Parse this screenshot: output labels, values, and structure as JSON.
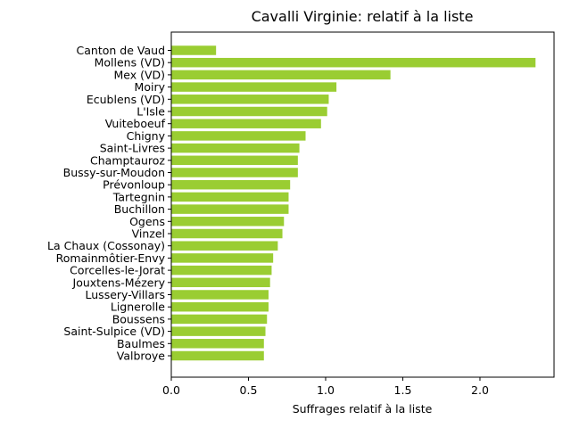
{
  "chart_data": {
    "type": "bar",
    "orientation": "horizontal",
    "title": "Cavalli Virginie: relatif à la liste",
    "xlabel": "Suffrages relatif à la liste",
    "ylabel": "",
    "xlim": [
      0,
      2.48
    ],
    "xticks": [
      0.0,
      0.5,
      1.0,
      1.5,
      2.0
    ],
    "xtick_labels": [
      "0.0",
      "0.5",
      "1.0",
      "1.5",
      "2.0"
    ],
    "bar_color": "#9acd32",
    "grid": false,
    "categories": [
      "Canton de Vaud",
      "Mollens (VD)",
      "Mex (VD)",
      "Moiry",
      "Ecublens (VD)",
      "L'Isle",
      "Vuiteboeuf",
      "Chigny",
      "Saint-Livres",
      "Champtauroz",
      "Bussy-sur-Moudon",
      "Prévonloup",
      "Tartegnin",
      "Buchillon",
      "Ogens",
      "Vinzel",
      "La Chaux (Cossonay)",
      "Romainmôtier-Envy",
      "Corcelles-le-Jorat",
      "Jouxtens-Mézery",
      "Lussery-Villars",
      "Lignerolle",
      "Boussens",
      "Saint-Sulpice (VD)",
      "Baulmes",
      "Valbroye"
    ],
    "values": [
      0.29,
      2.36,
      1.42,
      1.07,
      1.02,
      1.01,
      0.97,
      0.87,
      0.83,
      0.82,
      0.82,
      0.77,
      0.76,
      0.76,
      0.73,
      0.72,
      0.69,
      0.66,
      0.65,
      0.64,
      0.63,
      0.63,
      0.62,
      0.61,
      0.6,
      0.6
    ]
  }
}
